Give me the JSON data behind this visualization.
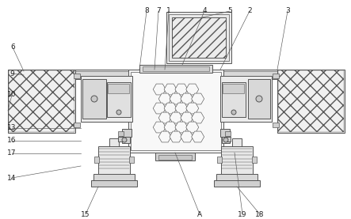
{
  "bg_color": "#ffffff",
  "lc": "#555555",
  "lw": 0.7,
  "fig_w": 4.43,
  "fig_h": 2.77,
  "dpi": 100
}
